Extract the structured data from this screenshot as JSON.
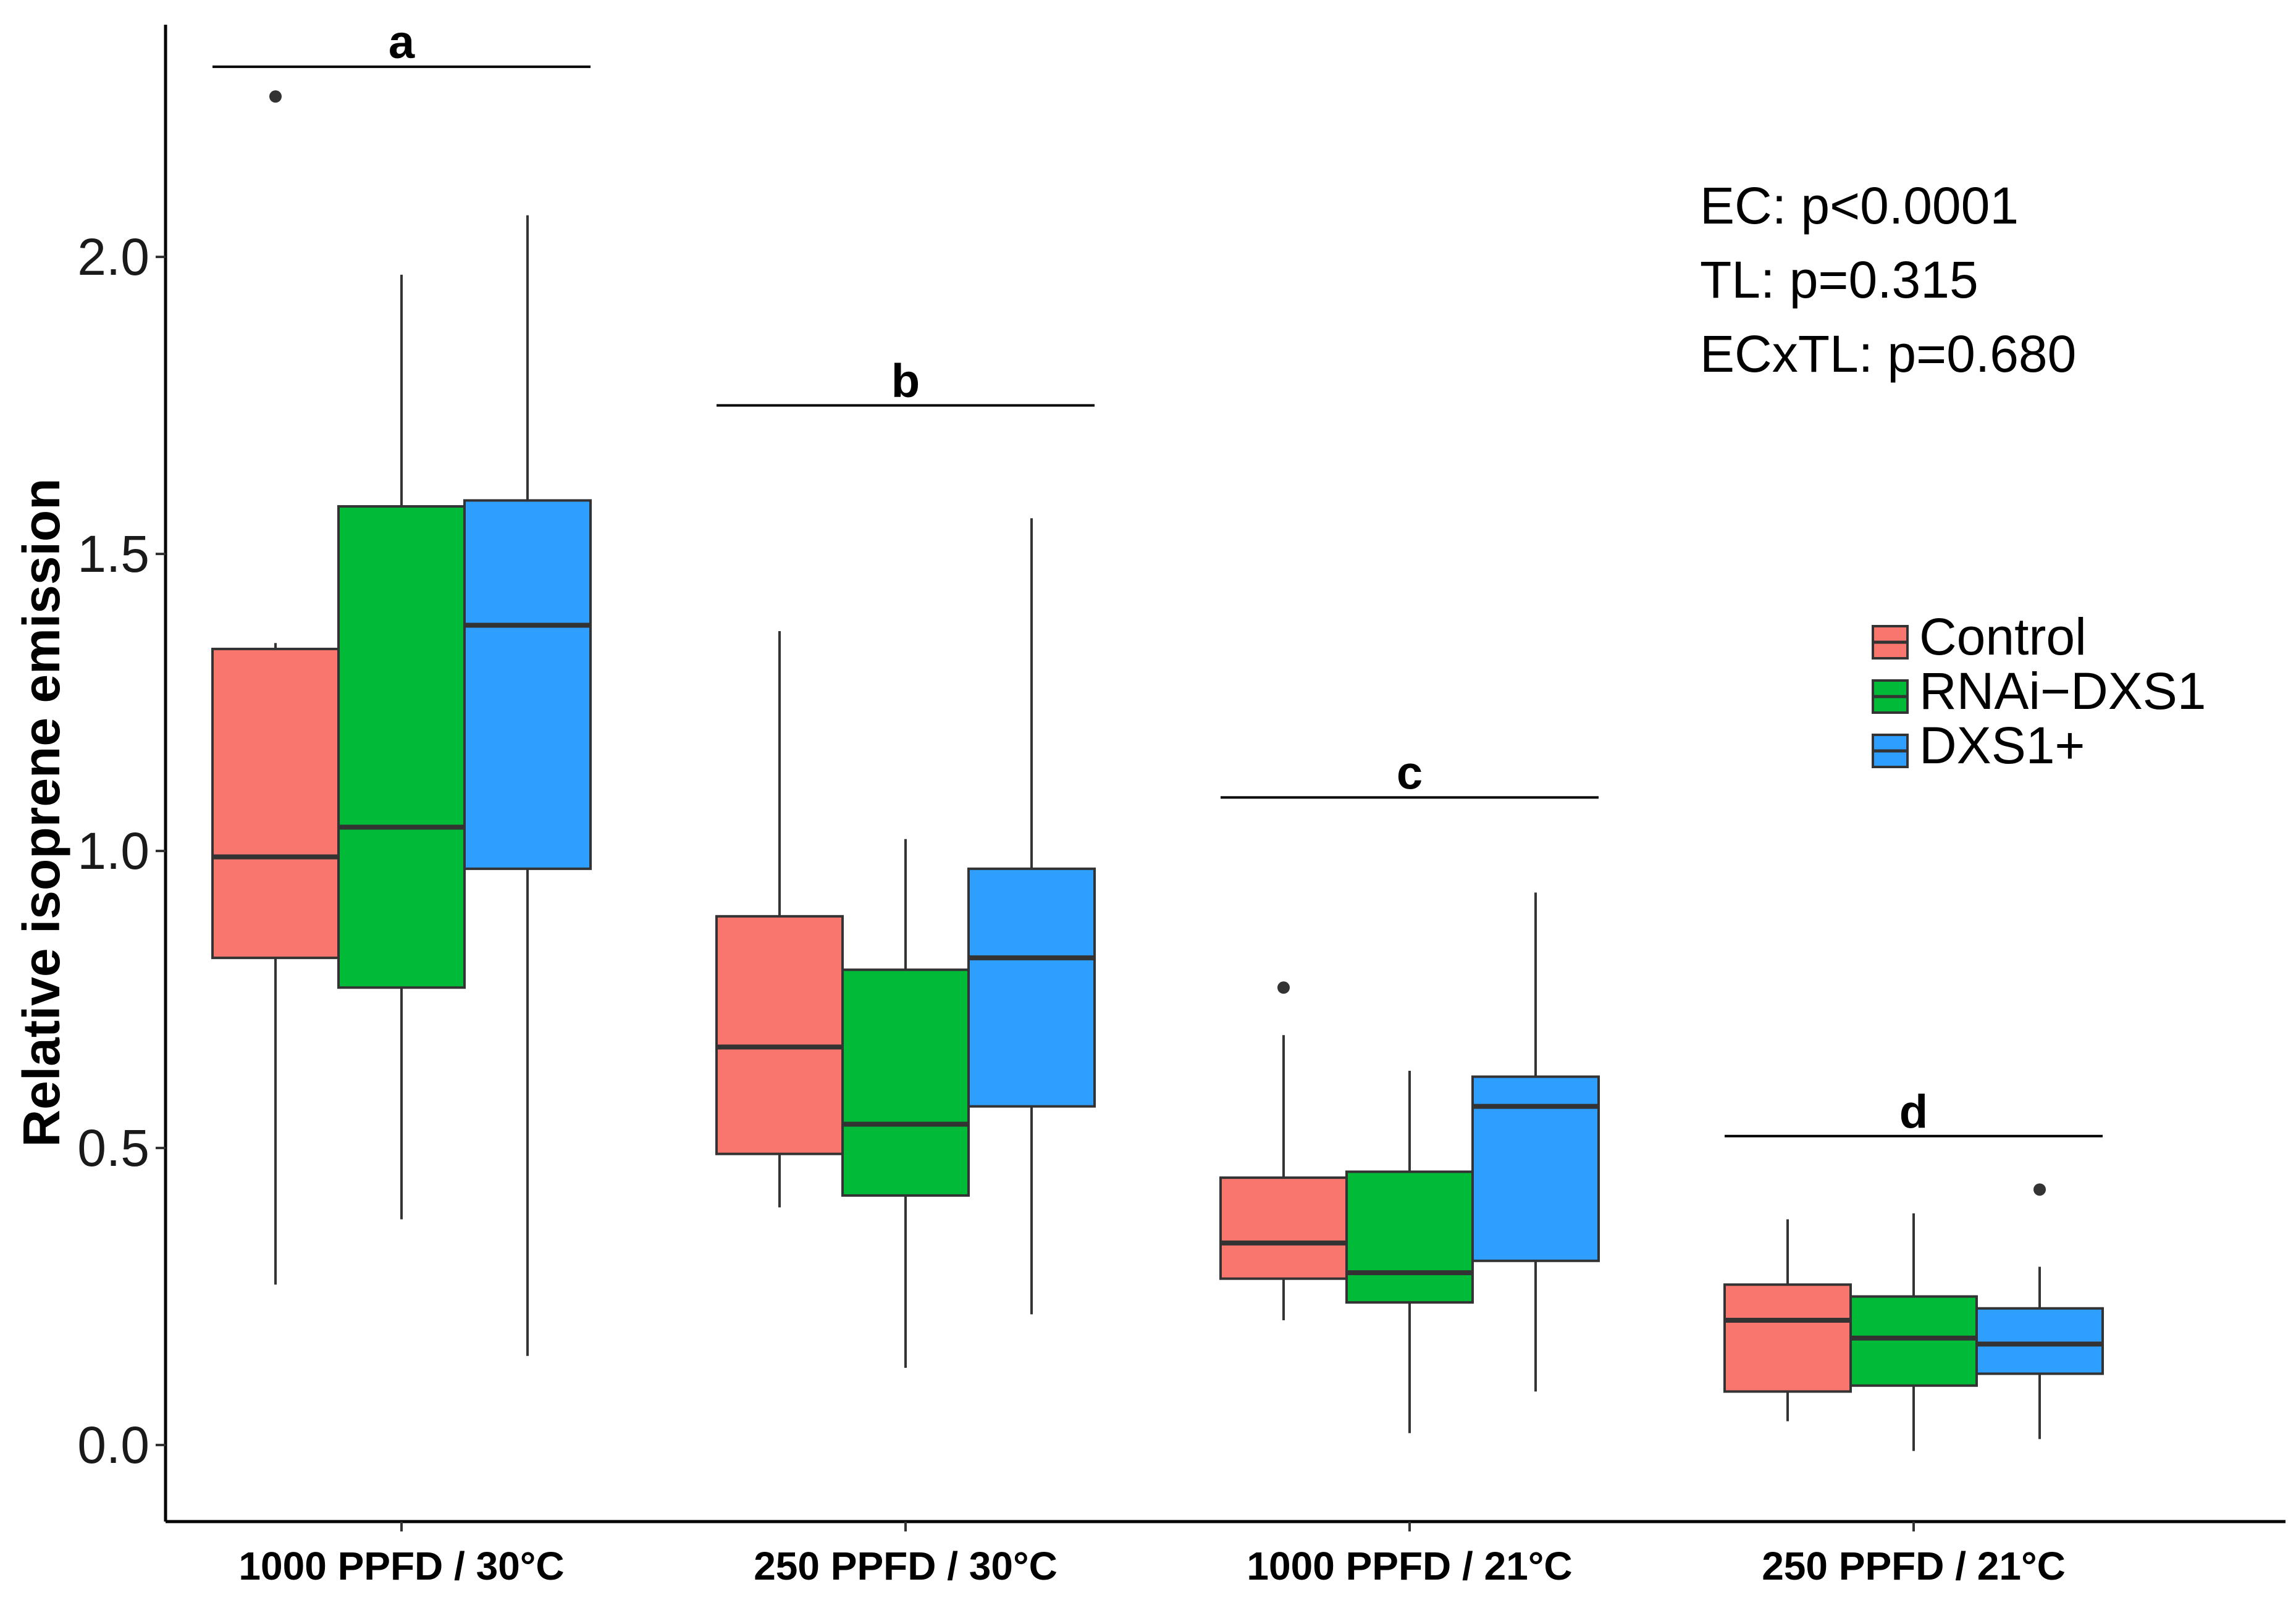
{
  "chart_data": {
    "type": "box",
    "title": "",
    "xlabel": "",
    "ylabel": "Relative isoprene emission",
    "ylim": [
      -0.12,
      2.38
    ],
    "yticks": [
      0.0,
      0.5,
      1.0,
      1.5,
      2.0
    ],
    "ytick_labels": [
      "0.0",
      "0.5",
      "1.0",
      "1.5",
      "2.0"
    ],
    "grid": false,
    "categories": [
      "1000 PPFD / 30°C",
      "250 PPFD / 30°C",
      "1000 PPFD / 21°C",
      "250 PPFD / 21°C"
    ],
    "significance_letters": [
      "a",
      "b",
      "c",
      "d"
    ],
    "significance_line_y": [
      2.32,
      1.75,
      1.09,
      0.52
    ],
    "series": [
      {
        "name": "Control",
        "color": "#f8766d",
        "boxes": [
          {
            "min": 0.27,
            "q1": 0.82,
            "median": 0.99,
            "q3": 1.34,
            "max": 1.35,
            "outliers": [
              2.27
            ]
          },
          {
            "min": 0.4,
            "q1": 0.49,
            "median": 0.67,
            "q3": 0.89,
            "max": 1.37,
            "outliers": []
          },
          {
            "min": 0.21,
            "q1": 0.28,
            "median": 0.34,
            "q3": 0.45,
            "max": 0.69,
            "outliers": [
              0.77
            ]
          },
          {
            "min": 0.04,
            "q1": 0.09,
            "median": 0.21,
            "q3": 0.27,
            "max": 0.38,
            "outliers": []
          }
        ]
      },
      {
        "name": "RNAi−DXS1",
        "color": "#00ba38",
        "boxes": [
          {
            "min": 0.38,
            "q1": 0.77,
            "median": 1.04,
            "q3": 1.58,
            "max": 1.97,
            "outliers": []
          },
          {
            "min": 0.13,
            "q1": 0.42,
            "median": 0.54,
            "q3": 0.8,
            "max": 1.02,
            "outliers": []
          },
          {
            "min": 0.02,
            "q1": 0.24,
            "median": 0.29,
            "q3": 0.46,
            "max": 0.63,
            "outliers": []
          },
          {
            "min": -0.01,
            "q1": 0.1,
            "median": 0.18,
            "q3": 0.25,
            "max": 0.39,
            "outliers": []
          }
        ]
      },
      {
        "name": "DXS1+",
        "color": "#2e9fff",
        "boxes": [
          {
            "min": 0.15,
            "q1": 0.97,
            "median": 1.38,
            "q3": 1.59,
            "max": 2.07,
            "outliers": []
          },
          {
            "min": 0.22,
            "q1": 0.57,
            "median": 0.82,
            "q3": 0.97,
            "max": 1.56,
            "outliers": []
          },
          {
            "min": 0.09,
            "q1": 0.31,
            "median": 0.57,
            "q3": 0.62,
            "max": 0.93,
            "outliers": []
          },
          {
            "min": 0.01,
            "q1": 0.12,
            "median": 0.17,
            "q3": 0.23,
            "max": 0.3,
            "outliers": [
              0.43
            ]
          }
        ]
      }
    ],
    "annotations": [
      "EC: p<0.0001",
      "TL: p=0.315",
      "ECxTL: p=0.680"
    ],
    "legend": {
      "position": "right",
      "entries": [
        "Control",
        "RNAi−DXS1",
        "DXS1+"
      ]
    }
  }
}
